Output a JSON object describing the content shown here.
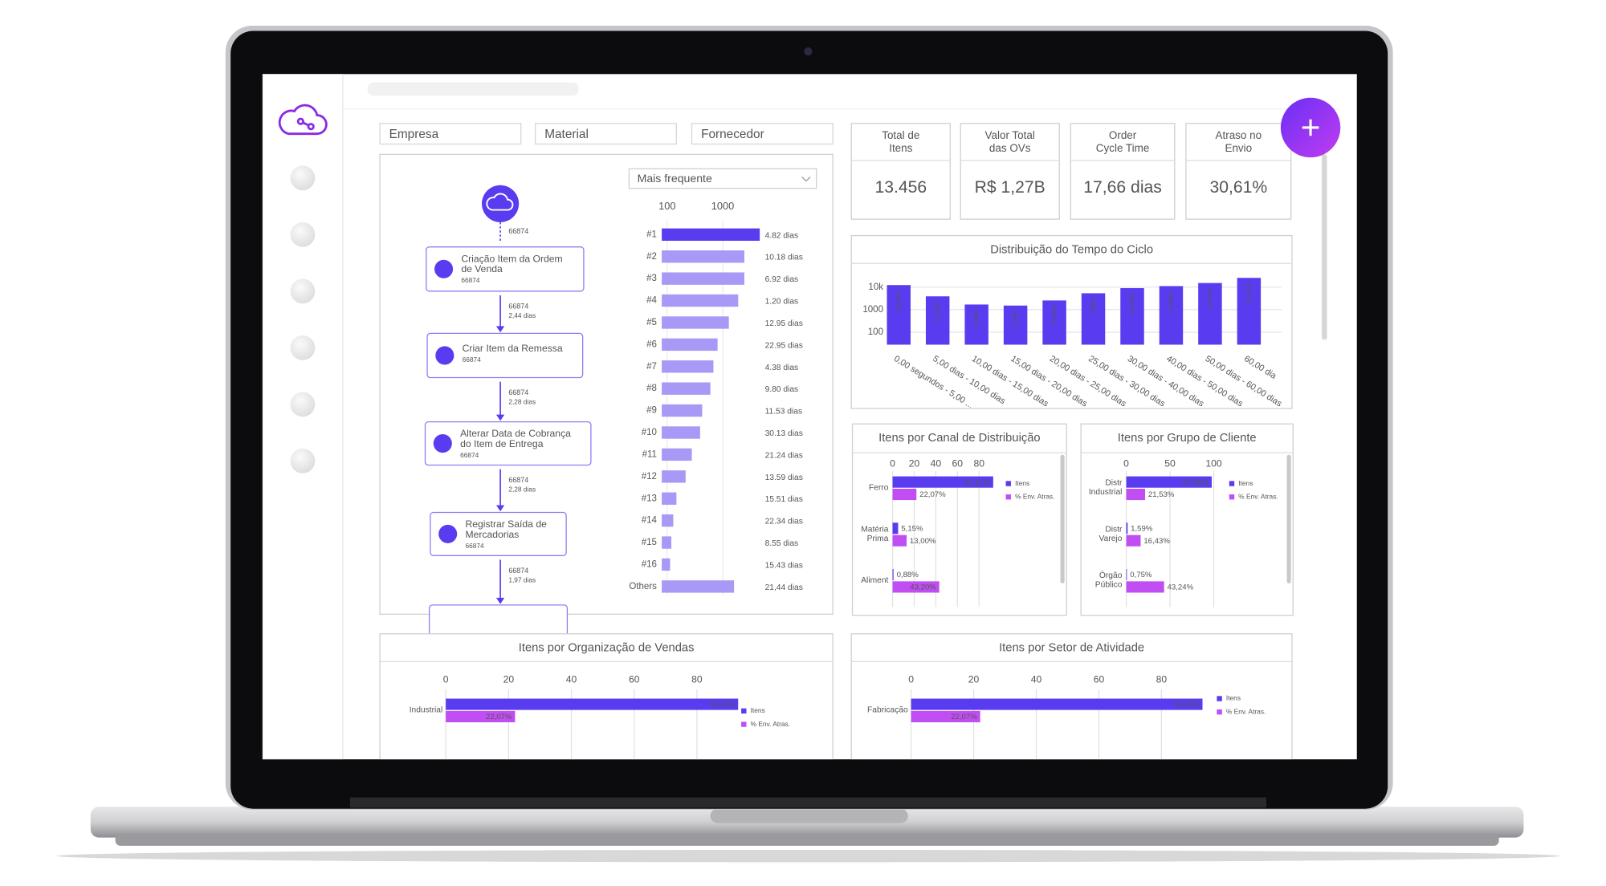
{
  "filters": [
    "Empresa",
    "Material",
    "Fornecedor"
  ],
  "kpis": [
    {
      "label": [
        "Total de",
        "Itens"
      ],
      "value": "13.456"
    },
    {
      "label": [
        "Valor Total",
        "das OVs"
      ],
      "value": "R$ 1,27B"
    },
    {
      "label": [
        "Order",
        "Cycle Time"
      ],
      "value": "17,66 dias"
    },
    {
      "label": [
        "Atraso no",
        "Envio"
      ],
      "value": "30,61%",
      "color": "#e8141e"
    }
  ],
  "process": {
    "start_count": "66874",
    "nodes": [
      {
        "label": [
          "Criação Item da Ordem",
          "de Venda"
        ],
        "count": "66874"
      },
      {
        "label": [
          "Criar Item da Remessa"
        ],
        "count": "66874"
      },
      {
        "label": [
          "Alterar Data de Cobrança",
          "do Item de Entrega"
        ],
        "count": "66874"
      },
      {
        "label": [
          "Registrar Saída de",
          "Mercadorias"
        ],
        "count": "66874"
      }
    ],
    "edges": [
      {
        "count": "66874",
        "time": "2,44 dias"
      },
      {
        "count": "66874",
        "time": "2,28 dias"
      },
      {
        "count": "66874",
        "time": "2,28 dias"
      },
      {
        "count": "66874",
        "time": "1,97 dias"
      }
    ]
  },
  "ranking": {
    "type": "bar",
    "dropdown": "Mais frequente",
    "log_scale": true,
    "xlim": [
      80,
      10000
    ],
    "xticks": [
      100,
      1000
    ],
    "categories": [
      "#1",
      "#2",
      "#3",
      "#4",
      "#5",
      "#6",
      "#7",
      "#8",
      "#9",
      "#10",
      "#11",
      "#12",
      "#13",
      "#14",
      "#15",
      "#16",
      "Others"
    ],
    "values": [
      4640,
      2450,
      2450,
      1900,
      1290,
      808,
      680,
      600,
      427,
      392,
      278,
      215,
      147,
      129,
      119,
      113,
      1600
    ],
    "durations": [
      "4.82 dias",
      "10.18 dias",
      "6.92 dias",
      "1.20 dias",
      "12.95 dias",
      "22.95 dias",
      "4.38 dias",
      "9.80 dias",
      "11.53 dias",
      "30.13 dias",
      "21.24 dias",
      "13.59 dias",
      "15.51 dias",
      "22.34 dias",
      "8.55 dias",
      "15.43 dias",
      "21,44 dias"
    ],
    "color": "#a899f6",
    "first_color": "#5a3cf0"
  },
  "cycle": {
    "type": "bar",
    "title": "Distribuição do Tempo do Ciclo",
    "log_scale": true,
    "grid": true,
    "ylim": [
      28,
      60000
    ],
    "yticks": [
      100,
      1000,
      {
        "value": 10000,
        "label": "10k"
      }
    ],
    "categories": [
      "0,00 segundos - 5,00 ...",
      "5,00 dias - 10,00 dias",
      "10,00 dias - 15,00 dias",
      "15,00 dias - 20,00 dias",
      "20,00 dias - 25,00 dias",
      "25,00 dias - 30,00 dias",
      "30,00 dias - 40,00 dias",
      "40,00 dias - 50,00 dias",
      "50,00 dias - 60,00 dias",
      "60,00 dia"
    ],
    "values": [
      12330,
      3900,
      1690,
      1520,
      2560,
      5340,
      9010,
      11100,
      15200,
      25700
    ],
    "bar_labels": [
      "26,97%",
      "22,13%",
      "1,69%",
      "1,76%",
      "3,03%",
      "7,38%",
      "14,09%",
      "16,88%",
      "19,70%",
      "21,49%"
    ],
    "color": "#5a3cf0"
  },
  "charts": [
    {
      "type": "hbar",
      "title": "Itens por Canal de Distribuição",
      "xlim": [
        0,
        100
      ],
      "xticks": [
        0,
        20,
        40,
        60,
        80
      ],
      "categories": [
        [
          "Ferro"
        ],
        [
          "Matéria",
          "Prima"
        ],
        [
          "Aliment"
        ]
      ],
      "series": [
        {
          "name": "Itens",
          "color": "#5a3cf0",
          "values": [
            93.11,
            5.15,
            0.88
          ],
          "value_labels": [
            "93,11%",
            "5,15%",
            "0,88%"
          ]
        },
        {
          "name": "% Env. Atras.",
          "color": "#c14ef2",
          "values": [
            22.07,
            13.0,
            43.2
          ],
          "value_labels": [
            "22,07%",
            "13,00%",
            "43,20%"
          ]
        }
      ]
    },
    {
      "type": "hbar",
      "title": "Itens por Grupo de Cliente",
      "xlim": [
        0,
        100
      ],
      "xticks": [
        0,
        50,
        100
      ],
      "categories": [
        [
          "Distr",
          "Industrial"
        ],
        [
          "Distr",
          "Varejo"
        ],
        [
          "Órgão",
          "Público"
        ]
      ],
      "series": [
        {
          "name": "Itens",
          "color": "#5a3cf0",
          "values": [
            97.66,
            1.59,
            0.75
          ],
          "value_labels": [
            "97,66%",
            "1,59%",
            "0,75%"
          ]
        },
        {
          "name": "% Env. Atras.",
          "color": "#c14ef2",
          "values": [
            21.53,
            16.43,
            43.24
          ],
          "value_labels": [
            "21,53%",
            "16,43%",
            "43,24%"
          ]
        }
      ]
    },
    {
      "type": "hbar",
      "title": "Itens por Organização de Vendas",
      "xlim": [
        0,
        100
      ],
      "xticks": [
        0,
        20,
        40,
        60,
        80
      ],
      "categories": [
        [
          "Industrial"
        ]
      ],
      "series": [
        {
          "name": "Itens",
          "color": "#5a3cf0",
          "values": [
            93.11
          ],
          "value_labels": [
            "93,11%"
          ]
        },
        {
          "name": "% Env. Atras.",
          "color": "#c14ef2",
          "values": [
            22.07
          ],
          "value_labels": [
            "22,07%"
          ]
        }
      ]
    },
    {
      "type": "hbar",
      "title": "Itens por Setor de Atividade",
      "xlim": [
        0,
        100
      ],
      "xticks": [
        0,
        20,
        40,
        60,
        80
      ],
      "categories": [
        [
          "Fabricação"
        ]
      ],
      "series": [
        {
          "name": "Itens",
          "color": "#5a3cf0",
          "values": [
            93.11
          ],
          "value_labels": [
            "93,11%"
          ]
        },
        {
          "name": "% Env. Atras.",
          "color": "#c14ef2",
          "values": [
            22.07
          ],
          "value_labels": [
            "22,07%"
          ]
        }
      ]
    }
  ]
}
